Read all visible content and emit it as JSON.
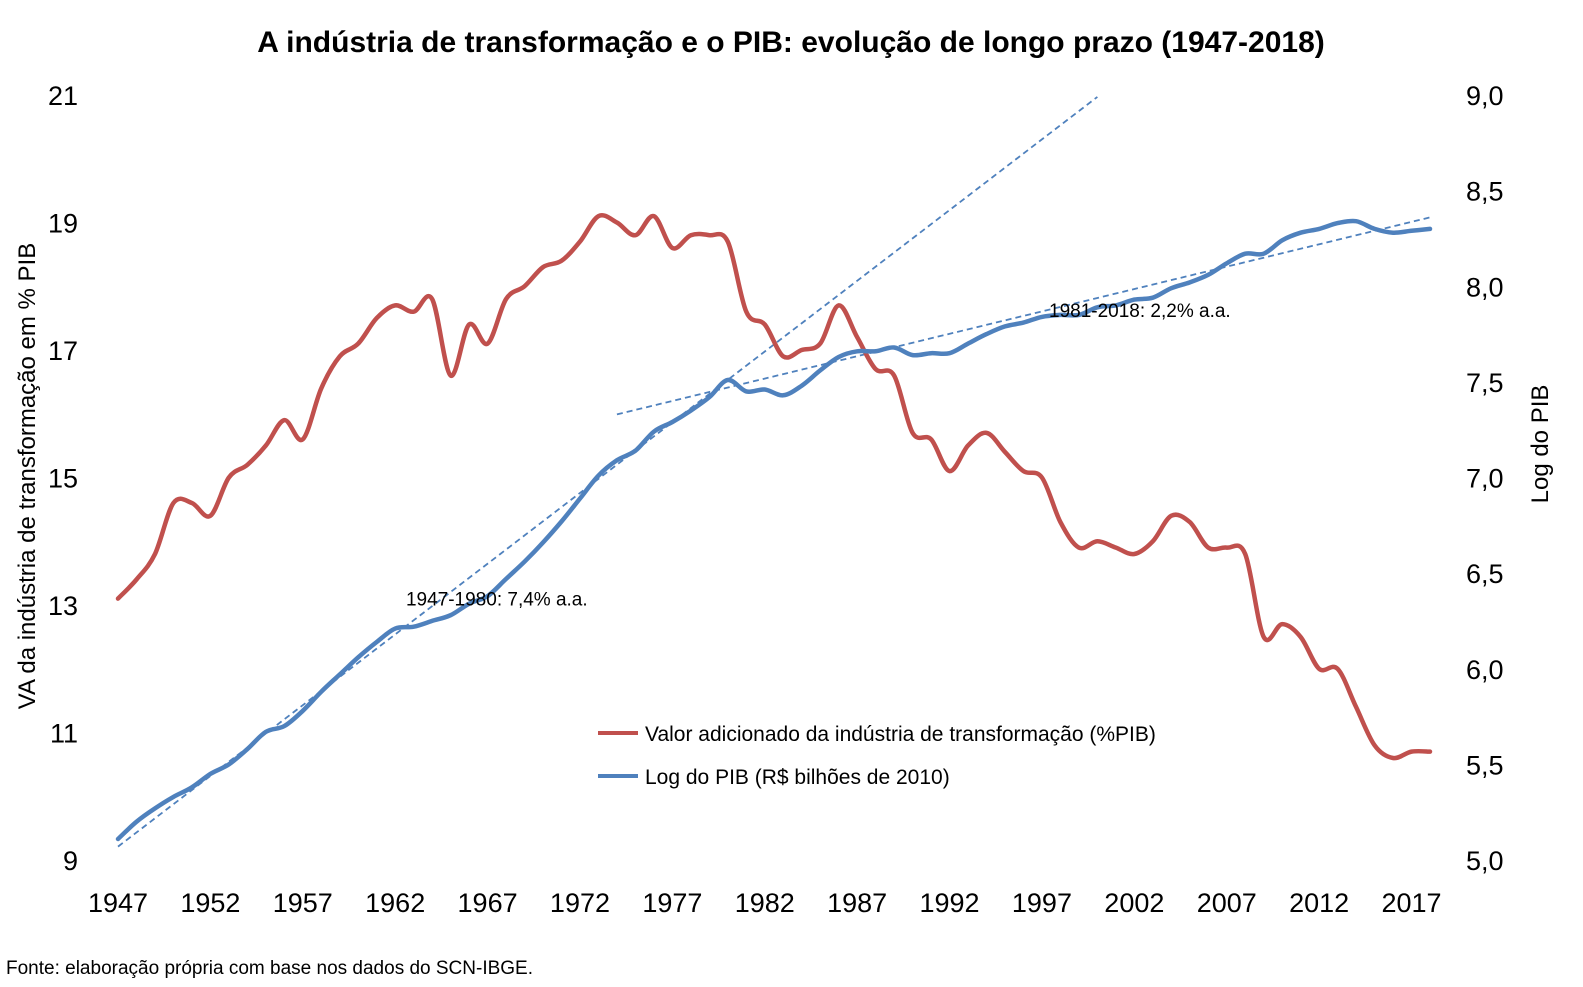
{
  "chart_data": {
    "type": "line",
    "title": "A indústria de transformação e o PIB: evolução de longo prazo (1947-2018)",
    "ylabel": "VA da indústria de transformação em % PIB",
    "y2label": "Log do PIB",
    "ylim": [
      9,
      21
    ],
    "y2lim": [
      5.0,
      9.0
    ],
    "xlim": [
      1947,
      2018
    ],
    "yticks": [
      "9",
      "11",
      "13",
      "15",
      "17",
      "19",
      "21"
    ],
    "y2ticks": [
      "5,0",
      "5,5",
      "6,0",
      "6,5",
      "7,0",
      "7,5",
      "8,0",
      "8,5",
      "9,0"
    ],
    "xticks": [
      "1947",
      "1952",
      "1957",
      "1962",
      "1967",
      "1972",
      "1977",
      "1982",
      "1987",
      "1992",
      "1997",
      "2002",
      "2007",
      "2012",
      "2017"
    ],
    "grid": false,
    "legend_position": "bottom-center",
    "series": [
      {
        "name": "Valor adicionado da indústria de transformação (%PIB)",
        "axis": "left",
        "color": "#C0504D",
        "x": [
          1947,
          1948,
          1949,
          1950,
          1951,
          1952,
          1953,
          1954,
          1955,
          1956,
          1957,
          1958,
          1959,
          1960,
          1961,
          1962,
          1963,
          1964,
          1965,
          1966,
          1967,
          1968,
          1969,
          1970,
          1971,
          1972,
          1973,
          1974,
          1975,
          1976,
          1977,
          1978,
          1979,
          1980,
          1981,
          1982,
          1983,
          1984,
          1985,
          1986,
          1987,
          1988,
          1989,
          1990,
          1991,
          1992,
          1993,
          1994,
          1995,
          1996,
          1997,
          1998,
          1999,
          2000,
          2001,
          2002,
          2003,
          2004,
          2005,
          2006,
          2007,
          2008,
          2009,
          2010,
          2011,
          2012,
          2013,
          2014,
          2015,
          2016,
          2017,
          2018
        ],
        "values": [
          13.1,
          13.4,
          13.8,
          14.6,
          14.6,
          14.4,
          15.0,
          15.2,
          15.5,
          15.9,
          15.6,
          16.4,
          16.9,
          17.1,
          17.5,
          17.7,
          17.6,
          17.8,
          16.6,
          17.4,
          17.1,
          17.8,
          18.0,
          18.3,
          18.4,
          18.7,
          19.1,
          19.0,
          18.8,
          19.1,
          18.6,
          18.8,
          18.8,
          18.7,
          17.6,
          17.4,
          16.9,
          17.0,
          17.1,
          17.7,
          17.2,
          16.7,
          16.6,
          15.7,
          15.6,
          15.1,
          15.5,
          15.7,
          15.4,
          15.1,
          15.0,
          14.3,
          13.9,
          14.0,
          13.9,
          13.8,
          14.0,
          14.4,
          14.3,
          13.9,
          13.9,
          13.8,
          12.5,
          12.7,
          12.5,
          12.0,
          12.0,
          11.4,
          10.8,
          10.6,
          10.7,
          10.7
        ]
      },
      {
        "name": "Log do PIB (R$ bilhões de 2010)",
        "axis": "right",
        "color": "#4F81BD",
        "x": [
          1947,
          1948,
          1949,
          1950,
          1951,
          1952,
          1953,
          1954,
          1955,
          1956,
          1957,
          1958,
          1959,
          1960,
          1961,
          1962,
          1963,
          1964,
          1965,
          1966,
          1967,
          1968,
          1969,
          1970,
          1971,
          1972,
          1973,
          1974,
          1975,
          1976,
          1977,
          1978,
          1979,
          1980,
          1981,
          1982,
          1983,
          1984,
          1985,
          1986,
          1987,
          1988,
          1989,
          1990,
          1991,
          1992,
          1993,
          1994,
          1995,
          1996,
          1997,
          1998,
          1999,
          2000,
          2001,
          2002,
          2003,
          2004,
          2005,
          2006,
          2007,
          2008,
          2009,
          2010,
          2011,
          2012,
          2013,
          2014,
          2015,
          2016,
          2017,
          2018
        ],
        "values": [
          5.11,
          5.2,
          5.27,
          5.33,
          5.38,
          5.45,
          5.5,
          5.58,
          5.67,
          5.7,
          5.78,
          5.88,
          5.97,
          6.06,
          6.14,
          6.21,
          6.22,
          6.25,
          6.28,
          6.34,
          6.38,
          6.47,
          6.56,
          6.66,
          6.77,
          6.89,
          7.01,
          7.09,
          7.14,
          7.24,
          7.29,
          7.35,
          7.42,
          7.51,
          7.45,
          7.46,
          7.43,
          7.48,
          7.56,
          7.63,
          7.66,
          7.66,
          7.68,
          7.64,
          7.65,
          7.65,
          7.7,
          7.75,
          7.79,
          7.81,
          7.84,
          7.85,
          7.85,
          7.89,
          7.9,
          7.93,
          7.94,
          7.99,
          8.02,
          8.06,
          8.12,
          8.17,
          8.17,
          8.24,
          8.28,
          8.3,
          8.33,
          8.34,
          8.3,
          8.28,
          8.29,
          8.3
        ]
      }
    ],
    "trendlines": [
      {
        "axis": "right",
        "style": "dashed",
        "color": "#4F81BD",
        "x": [
          1947,
          2000
        ],
        "values": [
          5.07,
          8.99
        ]
      },
      {
        "axis": "right",
        "style": "dashed",
        "color": "#4F81BD",
        "x": [
          1974,
          2018
        ],
        "values": [
          7.33,
          8.36
        ]
      }
    ],
    "annotations": [
      {
        "text": "1947-1980: 7,4% a.a.",
        "at_year": 1967.5,
        "at_log_pib": 6.33
      },
      {
        "text": "1981-2018: 2,2% a.a.",
        "at_year": 2002.3,
        "at_log_pib": 7.84
      }
    ]
  },
  "footer": {
    "source": "Fonte: elaboração própria com base nos dados do SCN-IBGE."
  }
}
